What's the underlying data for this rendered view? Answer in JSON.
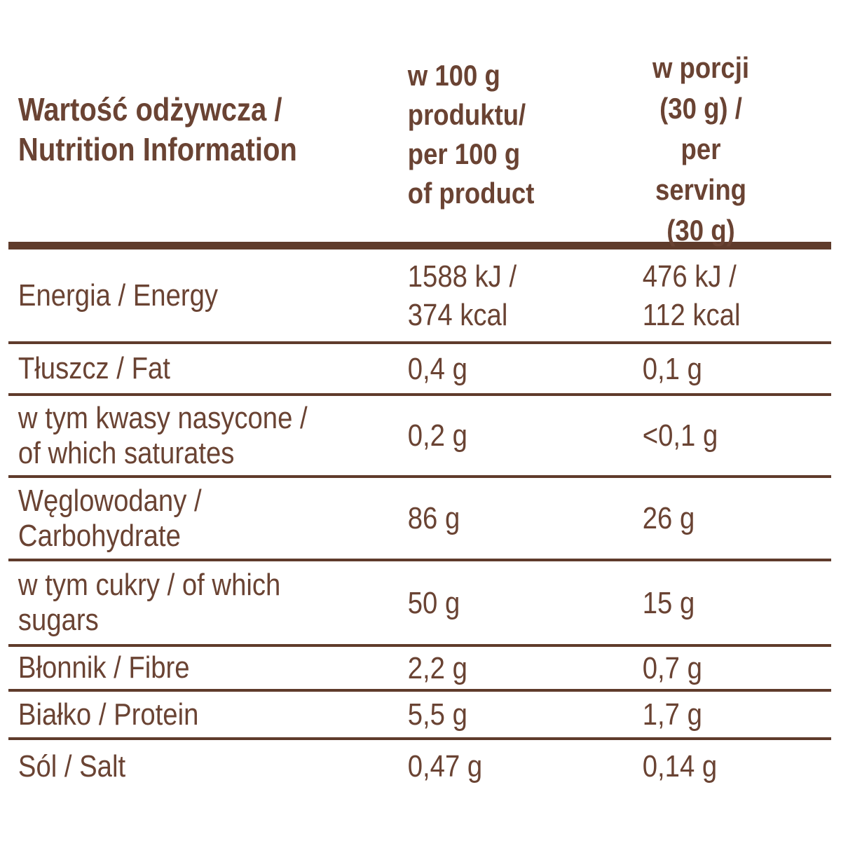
{
  "table": {
    "columns": {
      "label": "Wartość odżywcza /\nNutrition Information",
      "per_100g": "w 100 g\nproduktu/\nper 100 g\nof product",
      "per_serving": "w porcji\n(30 g) /\nper serving\n(30 g)"
    },
    "rows": [
      {
        "label": "Energia / Energy",
        "per_100g": "1588 kJ /\n374 kcal",
        "per_serving": "476 kJ /\n112 kcal"
      },
      {
        "label": "Tłuszcz / Fat",
        "per_100g": "0,4 g",
        "per_serving": "0,1 g"
      },
      {
        "label": "w tym kwasy nasycone /\nof which saturates",
        "per_100g": "0,2 g",
        "per_serving": "<0,1 g"
      },
      {
        "label": "Węglowodany /\nCarbohydrate",
        "per_100g": "86 g",
        "per_serving": "26 g"
      },
      {
        "label": "w tym cukry / of which\nsugars",
        "per_100g": "50 g",
        "per_serving": "15 g"
      },
      {
        "label": "Błonnik / Fibre",
        "per_100g": "2,2 g",
        "per_serving": "0,7 g"
      },
      {
        "label": "Białko / Protein",
        "per_100g": "5,5 g",
        "per_serving": "1,7 g"
      },
      {
        "label": "Sól / Salt",
        "per_100g": "0,47 g",
        "per_serving": "0,14 g"
      }
    ]
  },
  "colors": {
    "text": "#6a4333",
    "rule": "#5f3b2b",
    "background": "#ffffff"
  }
}
